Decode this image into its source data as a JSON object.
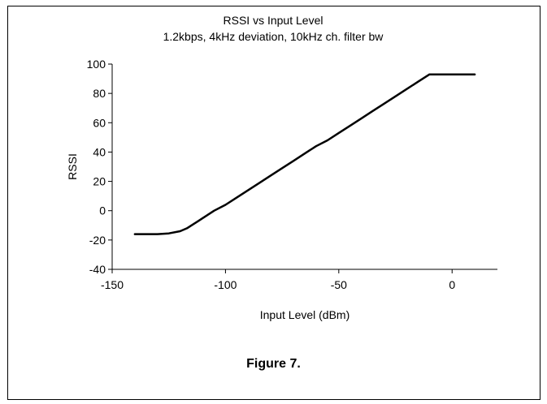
{
  "chart_data": {
    "type": "line",
    "title": "RSSI vs Input Level",
    "subtitle": "1.2kbps, 4kHz deviation, 10kHz ch. filter bw",
    "xlabel": "Input Level (dBm)",
    "ylabel": "RSSI",
    "xlim": [
      -150,
      20
    ],
    "ylim": [
      -40,
      100
    ],
    "xticks": [
      -150,
      -100,
      -50,
      0
    ],
    "yticks": [
      -40,
      -20,
      0,
      20,
      40,
      60,
      80,
      100
    ],
    "grid": false,
    "legend": "none",
    "line_color": "#000000",
    "series": [
      {
        "x": [
          -140,
          -135,
          -130,
          -125,
          -120,
          -117,
          -115,
          -112,
          -110,
          -105,
          -100,
          -95,
          -90,
          -85,
          -80,
          -75,
          -70,
          -65,
          -60,
          -55,
          -50,
          -45,
          -40,
          -35,
          -30,
          -25,
          -20,
          -15,
          -10,
          -5,
          0,
          5,
          10
        ],
        "y": [
          -16,
          -16,
          -16,
          -15.5,
          -14,
          -12,
          -10,
          -7,
          -5,
          0,
          4,
          9,
          14,
          19,
          24,
          29,
          34,
          39,
          44,
          48,
          53,
          58,
          63,
          68,
          73,
          78,
          83,
          88,
          93,
          93,
          93,
          93,
          93
        ]
      }
    ]
  },
  "caption": "Figure 7."
}
